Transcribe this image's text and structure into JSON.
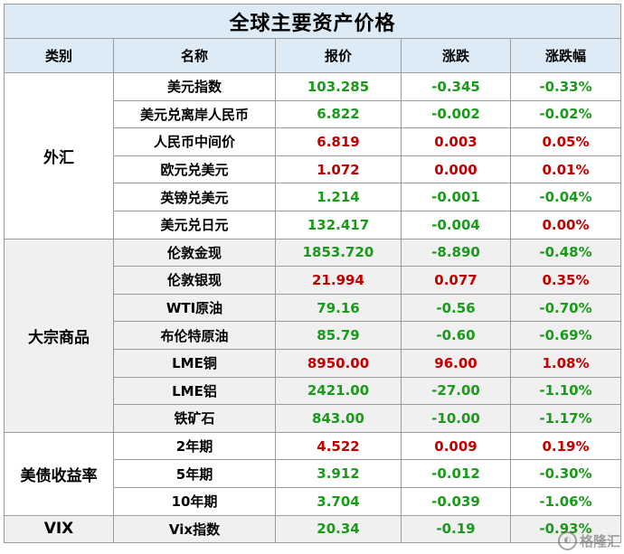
{
  "title": "全球主要资产价格",
  "headers": {
    "category": "类别",
    "name": "名称",
    "price": "报价",
    "change": "涨跌",
    "change_pct": "涨跌幅"
  },
  "colors": {
    "header_bg": "#ddebf7",
    "up": "#c00000",
    "down": "#1a9a1a",
    "gray_band": "#f0f0f0"
  },
  "groups": [
    {
      "category": "外汇",
      "rows": [
        {
          "name": "美元指数",
          "price": "103.285",
          "change": "-0.345",
          "change_pct": "-0.33%",
          "dir": "down"
        },
        {
          "name": "美元兑离岸人民币",
          "price": "6.822",
          "change": "-0.002",
          "change_pct": "-0.02%",
          "dir": "down"
        },
        {
          "name": "人民币中间价",
          "price": "6.819",
          "change": "0.003",
          "change_pct": "0.05%",
          "dir": "up"
        },
        {
          "name": "欧元兑美元",
          "price": "1.072",
          "change": "0.000",
          "change_pct": "0.01%",
          "dir": "up"
        },
        {
          "name": "英镑兑美元",
          "price": "1.214",
          "change": "-0.001",
          "change_pct": "-0.04%",
          "dir": "down"
        },
        {
          "name": "美元兑日元",
          "price": "132.417",
          "change": "-0.004",
          "change_pct": "0.00%",
          "dir": "mixed"
        }
      ]
    },
    {
      "category": "大宗商品",
      "rows": [
        {
          "name": "伦敦金现",
          "price": "1853.720",
          "change": "-8.890",
          "change_pct": "-0.48%",
          "dir": "down"
        },
        {
          "name": "伦敦银现",
          "price": "21.994",
          "change": "0.077",
          "change_pct": "0.35%",
          "dir": "up"
        },
        {
          "name": "WTI原油",
          "price": "79.16",
          "change": "-0.56",
          "change_pct": "-0.70%",
          "dir": "down"
        },
        {
          "name": "布伦特原油",
          "price": "85.79",
          "change": "-0.60",
          "change_pct": "-0.69%",
          "dir": "down"
        },
        {
          "name": "LME铜",
          "price": "8950.00",
          "change": "96.00",
          "change_pct": "1.08%",
          "dir": "up"
        },
        {
          "name": "LME铝",
          "price": "2421.00",
          "change": "-27.00",
          "change_pct": "-1.10%",
          "dir": "down"
        },
        {
          "name": "铁矿石",
          "price": "843.00",
          "change": "-10.00",
          "change_pct": "-1.17%",
          "dir": "down"
        }
      ]
    },
    {
      "category": "美债收益率",
      "rows": [
        {
          "name": "2年期",
          "price": "4.522",
          "change": "0.009",
          "change_pct": "0.19%",
          "dir": "up"
        },
        {
          "name": "5年期",
          "price": "3.912",
          "change": "-0.012",
          "change_pct": "-0.30%",
          "dir": "down"
        },
        {
          "name": "10年期",
          "price": "3.704",
          "change": "-0.039",
          "change_pct": "-1.06%",
          "dir": "down"
        }
      ]
    },
    {
      "category": "VIX",
      "rows": [
        {
          "name": "Vix指数",
          "price": "20.34",
          "change": "-0.19",
          "change_pct": "-0.93%",
          "dir": "down"
        }
      ]
    }
  ],
  "watermark": "格隆汇"
}
